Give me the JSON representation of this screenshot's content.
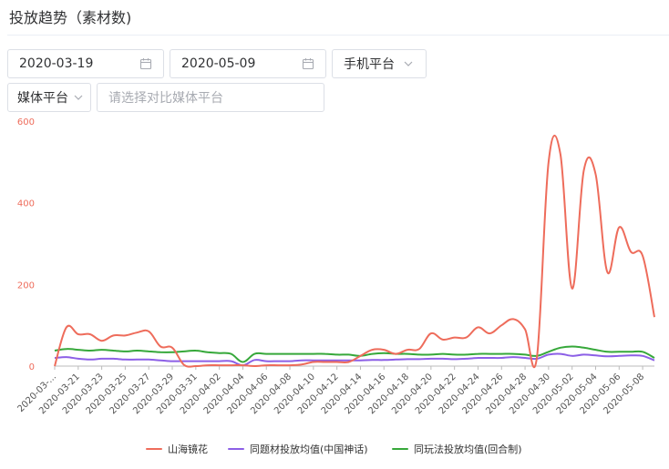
{
  "header": {
    "title": "投放趋势（素材数)"
  },
  "filters": {
    "start_date": "2020-03-19",
    "end_date": "2020-05-09",
    "platform": "手机平台",
    "media_platform": "媒体平台",
    "compare_placeholder": "请选择对比媒体平台"
  },
  "colors": {
    "series1": "#ee6c5b",
    "series2": "#8c5fe6",
    "series3": "#36a83a",
    "axis_label": "#ee6c5b"
  },
  "chart_data": {
    "type": "line",
    "title": "",
    "xlabel": "",
    "ylabel": "",
    "ylim": [
      0,
      600
    ],
    "yticks": [
      0,
      200,
      400,
      600
    ],
    "grid": false,
    "legend_position": "bottom",
    "x": [
      "2020-03-19",
      "2020-03-20",
      "2020-03-21",
      "2020-03-22",
      "2020-03-23",
      "2020-03-24",
      "2020-03-25",
      "2020-03-26",
      "2020-03-27",
      "2020-03-28",
      "2020-03-29",
      "2020-03-30",
      "2020-03-31",
      "2020-04-01",
      "2020-04-02",
      "2020-04-03",
      "2020-04-04",
      "2020-04-05",
      "2020-04-06",
      "2020-04-07",
      "2020-04-08",
      "2020-04-09",
      "2020-04-10",
      "2020-04-11",
      "2020-04-12",
      "2020-04-13",
      "2020-04-14",
      "2020-04-15",
      "2020-04-16",
      "2020-04-17",
      "2020-04-18",
      "2020-04-19",
      "2020-04-20",
      "2020-04-21",
      "2020-04-22",
      "2020-04-23",
      "2020-04-24",
      "2020-04-25",
      "2020-04-26",
      "2020-04-27",
      "2020-04-28",
      "2020-04-29",
      "2020-04-30",
      "2020-05-01",
      "2020-05-02",
      "2020-05-03",
      "2020-05-04",
      "2020-05-05",
      "2020-05-06",
      "2020-05-07",
      "2020-05-08",
      "2020-05-09"
    ],
    "x_tick_labels": [
      "2020-03-...",
      "2020-03-21",
      "2020-03-23",
      "2020-03-25",
      "2020-03-27",
      "2020-03-29",
      "2020-03-31",
      "2020-04-02",
      "2020-04-04",
      "2020-04-06",
      "2020-04-08",
      "2020-04-10",
      "2020-04-12",
      "2020-04-14",
      "2020-04-16",
      "2020-04-18",
      "2020-04-20",
      "2020-04-22",
      "2020-04-24",
      "2020-04-26",
      "2020-04-28",
      "2020-04-30",
      "2020-05-02",
      "2020-05-04",
      "2020-05-06",
      "2020-05-08"
    ],
    "series": [
      {
        "name": "山海镜花",
        "values": [
          0,
          95,
          78,
          78,
          62,
          75,
          75,
          82,
          85,
          48,
          45,
          3,
          0,
          2,
          2,
          2,
          2,
          0,
          2,
          2,
          2,
          4,
          10,
          10,
          10,
          10,
          25,
          40,
          40,
          30,
          40,
          42,
          80,
          65,
          70,
          70,
          95,
          80,
          100,
          115,
          90,
          20,
          500,
          520,
          190,
          480,
          470,
          230,
          340,
          280,
          270,
          120
        ]
      },
      {
        "name": "同题材投放均值(中国神话)",
        "values": [
          20,
          22,
          18,
          16,
          18,
          18,
          16,
          16,
          16,
          14,
          12,
          12,
          12,
          12,
          12,
          12,
          2,
          15,
          12,
          12,
          12,
          14,
          14,
          14,
          14,
          14,
          14,
          15,
          15,
          16,
          17,
          17,
          18,
          18,
          17,
          18,
          20,
          20,
          20,
          22,
          20,
          18,
          28,
          30,
          25,
          28,
          26,
          24,
          25,
          26,
          25,
          14
        ]
      },
      {
        "name": "同玩法投放均值(回合制)",
        "values": [
          38,
          42,
          40,
          38,
          40,
          38,
          36,
          38,
          36,
          34,
          34,
          36,
          38,
          34,
          32,
          30,
          10,
          30,
          30,
          30,
          30,
          30,
          30,
          30,
          28,
          28,
          25,
          30,
          32,
          30,
          30,
          28,
          28,
          30,
          28,
          28,
          30,
          30,
          30,
          30,
          28,
          25,
          35,
          45,
          48,
          45,
          40,
          35,
          35,
          35,
          35,
          20
        ]
      }
    ]
  }
}
